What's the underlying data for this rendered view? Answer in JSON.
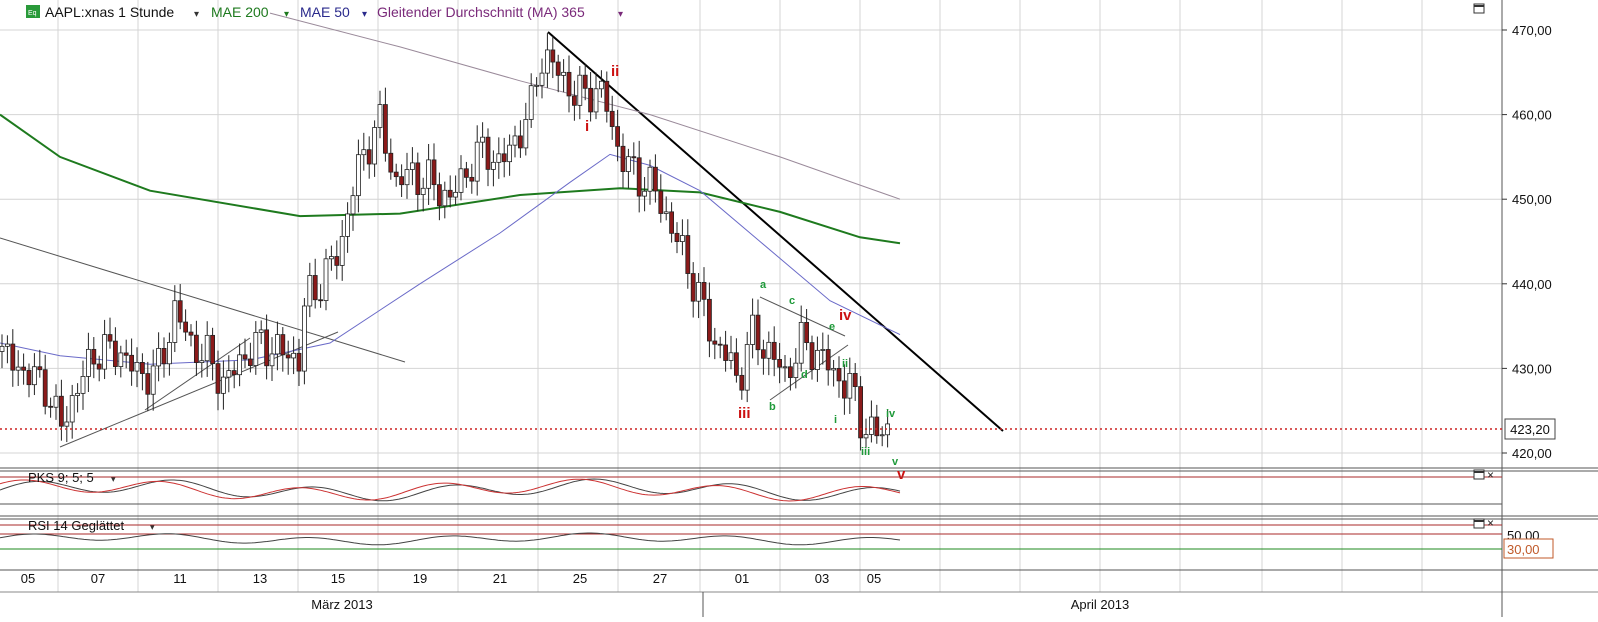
{
  "legend": {
    "instrument_badge": "Eq",
    "symbol": "AAPL:xnas 1 Stunde",
    "indicators": [
      {
        "label": "MAE 200",
        "color": "#1e7a1e"
      },
      {
        "label": "MAE 50",
        "color": "#2a2a8c"
      },
      {
        "label": "Gleitender Durchschnitt (MA) 365",
        "color": "#7a2a7a"
      }
    ]
  },
  "price_axis": {
    "labels": [
      "470,00",
      "460,00",
      "450,00",
      "440,00",
      "430,00",
      "420,00"
    ],
    "current_price": "423,20"
  },
  "pks_panel": {
    "title": "PKS 9; 5; 5"
  },
  "rsi_panel": {
    "title": "RSI 14 Geglättet",
    "axis_labels": [
      "50,00",
      "30,00"
    ]
  },
  "time_axis": {
    "day_labels": [
      "05",
      "07",
      "11",
      "13",
      "15",
      "19",
      "21",
      "25",
      "27",
      "01",
      "03",
      "05"
    ],
    "month_labels": [
      "März 2013",
      "April 2013"
    ]
  },
  "wave_labels": {
    "red": [
      "i",
      "ii",
      "iii",
      "iv",
      "v"
    ],
    "green": [
      "a",
      "b",
      "c",
      "d",
      "e",
      "i",
      "ii",
      "iii",
      "iv",
      "v"
    ]
  },
  "colors": {
    "up_candle": "#ffffff",
    "down_candle": "#8b1a1a",
    "mae200": "#1e7a1e",
    "mae50": "#6a6ac8",
    "ma365": "#9a8a9a",
    "price_line": "#cc2222",
    "wave_red": "#cc1111",
    "wave_green": "#1f9a3a"
  },
  "chart_data": {
    "type": "candlestick",
    "symbol": "AAPL:xnas",
    "interval": "1 Stunde",
    "ylim": [
      418,
      472
    ],
    "last_price": 423.2,
    "price_ticks": [
      470,
      460,
      450,
      440,
      430,
      420
    ],
    "rsi_levels": [
      50,
      30
    ],
    "series": [
      {
        "name": "MAE 200",
        "points": [
          [
            0,
            460
          ],
          [
            60,
            455
          ],
          [
            150,
            451
          ],
          [
            300,
            448
          ],
          [
            400,
            448.3
          ],
          [
            520,
            450.5
          ],
          [
            620,
            451.3
          ],
          [
            700,
            450.8
          ],
          [
            780,
            448.5
          ],
          [
            860,
            445.5
          ],
          [
            900,
            444.8
          ]
        ]
      },
      {
        "name": "MAE 50",
        "points": [
          [
            0,
            433
          ],
          [
            60,
            431.5
          ],
          [
            150,
            430.5
          ],
          [
            250,
            431
          ],
          [
            330,
            433
          ],
          [
            420,
            440
          ],
          [
            500,
            446
          ],
          [
            570,
            452
          ],
          [
            610,
            455.3
          ],
          [
            650,
            454
          ],
          [
            700,
            451
          ],
          [
            760,
            445
          ],
          [
            830,
            438
          ],
          [
            900,
            434
          ]
        ]
      },
      {
        "name": "Gleitender Durchschnitt (MA) 365",
        "points": [
          [
            270,
            472
          ],
          [
            400,
            468
          ],
          [
            520,
            464
          ],
          [
            650,
            460
          ],
          [
            780,
            455
          ],
          [
            900,
            450
          ]
        ]
      }
    ]
  }
}
